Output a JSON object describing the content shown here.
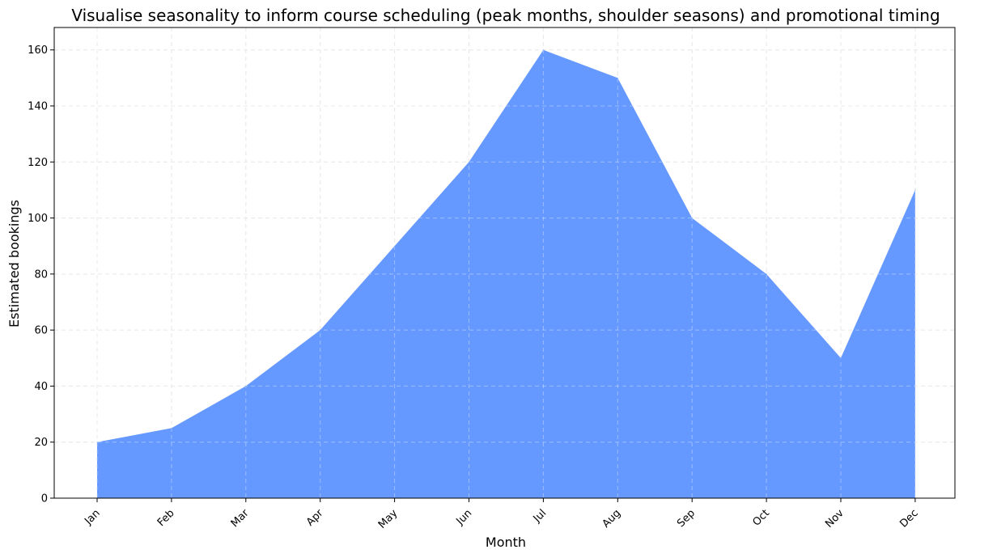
{
  "chart_data": {
    "type": "area",
    "title": "Visualise seasonality to inform course scheduling (peak months, shoulder seasons) and promotional timing",
    "xlabel": "Month",
    "ylabel": "Estimated bookings",
    "categories": [
      "Jan",
      "Feb",
      "Mar",
      "Apr",
      "May",
      "Jun",
      "Jul",
      "Aug",
      "Sep",
      "Oct",
      "Nov",
      "Dec"
    ],
    "values": [
      20,
      25,
      40,
      60,
      90,
      120,
      160,
      150,
      100,
      80,
      50,
      110
    ],
    "ylim": [
      0,
      168
    ],
    "yticks": [
      0,
      20,
      40,
      60,
      80,
      100,
      120,
      140,
      160
    ],
    "grid": true,
    "fill_color": "#6699ff",
    "xtick_rotation_deg": 45
  }
}
